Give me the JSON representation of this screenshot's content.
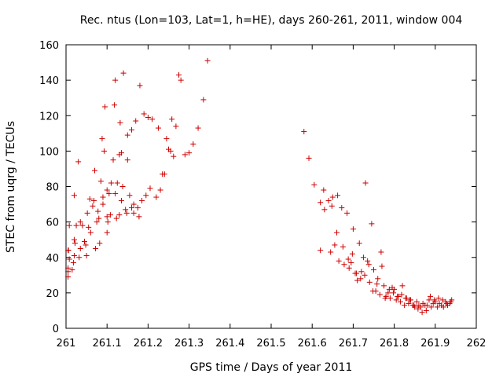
{
  "chart_data": {
    "type": "scatter",
    "title": "Rec. ntus (Lon=103, Lat=1, h=HE), days 260-261, 2011, window 004",
    "xlabel": "GPS time / Days of year 2011",
    "ylabel": "STEC from uqrg / TECUs",
    "xlim": [
      261,
      262
    ],
    "ylim": [
      0,
      160
    ],
    "x_ticks": [
      "261",
      "261.1",
      "261.2",
      "261.3",
      "261.4",
      "261.5",
      "261.6",
      "261.7",
      "261.8",
      "261.9",
      "262"
    ],
    "y_ticks": [
      "0",
      "20",
      "40",
      "60",
      "80",
      "100",
      "120",
      "140",
      "160"
    ],
    "grid": false,
    "legend": "none",
    "marker": "+",
    "marker_color": "#cc0000",
    "series": [
      {
        "x": [
          261.005,
          261.005,
          261.005,
          261.005,
          261.006,
          261.008,
          261.008,
          261.015,
          261.018,
          261.02,
          261.02,
          261.02,
          261.022,
          261.025,
          261.03,
          261.032,
          261.035,
          261.035,
          261.04,
          261.045,
          261.048,
          261.05,
          261.052,
          261.055,
          261.058,
          261.06,
          261.065,
          261.068,
          261.07,
          261.072,
          261.075,
          261.078,
          261.08,
          261.082,
          261.085,
          261.088,
          261.09,
          261.09,
          261.093,
          261.095,
          261.1,
          261.1,
          261.1,
          261.102,
          261.105,
          261.108,
          261.11,
          261.115,
          261.118,
          261.12,
          261.12,
          261.123,
          261.125,
          261.13,
          261.13,
          261.132,
          261.135,
          261.135,
          261.138,
          261.14,
          261.145,
          261.148,
          261.15,
          261.15,
          261.155,
          261.16,
          261.16,
          261.165,
          261.165,
          261.17,
          261.175,
          261.178,
          261.18,
          261.185,
          261.19,
          261.195,
          261.2,
          261.205,
          261.21,
          261.22,
          261.225,
          261.23,
          261.235,
          261.24,
          261.245,
          261.25,
          261.255,
          261.258,
          261.262,
          261.268,
          261.275,
          261.28,
          261.29,
          261.3,
          261.31,
          261.322,
          261.335,
          261.345
        ],
        "y": [
          29,
          32,
          34,
          44,
          44,
          58,
          39,
          33,
          37,
          41,
          50,
          75,
          48,
          58,
          94,
          40,
          45,
          60,
          58,
          49,
          47,
          41,
          65,
          57,
          73,
          54,
          69,
          72,
          89,
          45,
          60,
          66,
          62,
          48,
          83,
          107,
          70,
          74,
          100,
          125,
          54,
          63,
          78,
          60,
          76,
          64,
          82,
          95,
          126,
          140,
          76,
          62,
          82,
          98,
          64,
          116,
          72,
          99,
          80,
          144,
          67,
          65,
          109,
          95,
          75,
          68,
          112,
          70,
          65,
          117,
          68,
          63,
          137,
          72,
          121,
          75,
          119,
          79,
          118,
          74,
          113,
          78,
          87,
          87,
          107,
          101,
          100,
          118,
          97,
          114,
          143,
          140,
          98,
          99,
          104,
          113,
          129,
          151
        ]
      },
      {
        "x": [
          261.58,
          261.592,
          261.605,
          261.62,
          261.628,
          261.64,
          261.648,
          261.65,
          261.66,
          261.665,
          261.672,
          261.678,
          261.685,
          261.69,
          261.695,
          261.7,
          261.705,
          261.71,
          261.715,
          261.72,
          261.725,
          261.73,
          261.735,
          261.74,
          261.745,
          261.75,
          261.755,
          261.76,
          261.765,
          261.77,
          261.775,
          261.78,
          261.785,
          261.79,
          261.795,
          261.8,
          261.805,
          261.81,
          261.815,
          261.82,
          261.825,
          261.83,
          261.835,
          261.84,
          261.845,
          261.85,
          261.855,
          261.86,
          261.865,
          261.87,
          261.875,
          261.88,
          261.885,
          261.89,
          261.895,
          261.9,
          261.905,
          261.91,
          261.915,
          261.92,
          261.925,
          261.93,
          261.935,
          261.94,
          261.62,
          261.63,
          261.645,
          261.655,
          261.662,
          261.675,
          261.688,
          261.698,
          261.708,
          261.718,
          261.728,
          261.738,
          261.748,
          261.758,
          261.768,
          261.778,
          261.788,
          261.798,
          261.808,
          261.818,
          261.828,
          261.838,
          261.848,
          261.858,
          261.868,
          261.878,
          261.888,
          261.898,
          261.908,
          261.918,
          261.928,
          261.938
        ],
        "y": [
          111,
          96,
          81,
          71,
          78,
          72,
          69,
          74,
          54,
          38,
          68,
          36,
          65,
          34,
          37,
          56,
          31,
          27,
          48,
          32,
          40,
          82,
          38,
          26,
          59,
          33,
          21,
          28,
          19,
          35,
          24,
          18,
          20,
          17,
          23,
          22,
          16,
          18,
          15,
          24,
          13,
          17,
          14,
          16,
          13,
          12,
          15,
          13,
          12,
          14,
          13,
          13,
          16,
          12,
          14,
          15,
          12,
          14,
          13,
          12,
          15,
          13,
          14,
          16,
          44,
          67,
          43,
          47,
          75,
          46,
          39,
          42,
          31,
          28,
          30,
          36,
          21,
          25,
          43,
          17,
          22,
          20,
          18,
          19,
          17,
          16,
          13,
          11,
          9,
          10,
          18,
          16,
          17,
          16,
          14,
          15
        ]
      }
    ]
  }
}
